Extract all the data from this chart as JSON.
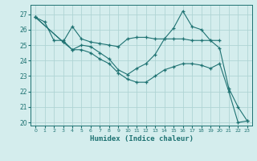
{
  "xlabel": "Humidex (Indice chaleur)",
  "background_color": "#d4eded",
  "grid_color": "#afd4d4",
  "line_color": "#1e7272",
  "xlim": [
    -0.5,
    23.5
  ],
  "ylim": [
    19.8,
    27.6
  ],
  "yticks": [
    20,
    21,
    22,
    23,
    24,
    25,
    26,
    27
  ],
  "xticks": [
    0,
    1,
    2,
    3,
    4,
    5,
    6,
    7,
    8,
    9,
    10,
    11,
    12,
    13,
    14,
    15,
    16,
    17,
    18,
    19,
    20,
    21,
    22,
    23
  ],
  "lines": [
    {
      "x": [
        0,
        1,
        2,
        3,
        4,
        5,
        6,
        7,
        8,
        9,
        10,
        11,
        12,
        13,
        14,
        15,
        16,
        17,
        18,
        19,
        20,
        21,
        22,
        23
      ],
      "y": [
        26.8,
        26.5,
        25.3,
        25.3,
        24.7,
        25.0,
        24.9,
        24.5,
        24.1,
        23.4,
        23.1,
        23.5,
        23.8,
        24.4,
        25.4,
        26.1,
        27.2,
        26.2,
        26.0,
        25.3,
        24.8,
        22.2,
        21.0,
        20.1
      ]
    },
    {
      "x": [
        0,
        3,
        4,
        5,
        6,
        7,
        8,
        9,
        10,
        11,
        12,
        13,
        14,
        15,
        16,
        17,
        18,
        19,
        20
      ],
      "y": [
        26.8,
        25.2,
        26.2,
        25.4,
        25.2,
        25.1,
        25.0,
        24.9,
        25.4,
        25.5,
        25.5,
        25.4,
        25.4,
        25.4,
        25.4,
        25.3,
        25.3,
        25.3,
        25.3
      ]
    },
    {
      "x": [
        0,
        3,
        4,
        5,
        6,
        7,
        8,
        9,
        10,
        11,
        12,
        13,
        14,
        15,
        16,
        17,
        18,
        19,
        20,
        21,
        22,
        23
      ],
      "y": [
        26.8,
        25.2,
        24.7,
        24.7,
        24.5,
        24.1,
        23.8,
        23.2,
        22.8,
        22.6,
        22.6,
        23.0,
        23.4,
        23.6,
        23.8,
        23.8,
        23.7,
        23.5,
        23.8,
        22.0,
        20.0,
        20.1
      ]
    }
  ]
}
